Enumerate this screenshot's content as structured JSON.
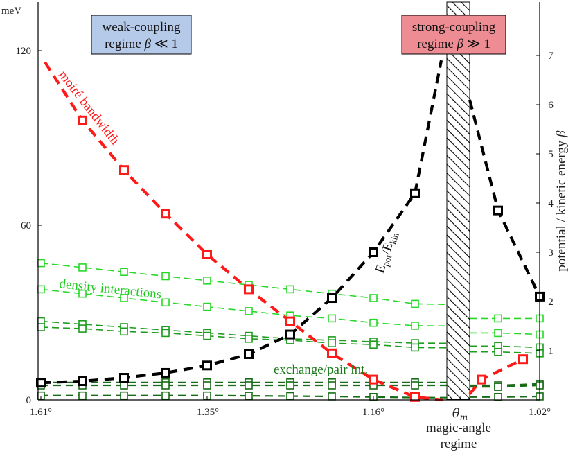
{
  "chart_data": {
    "type": "line",
    "x_axis": {
      "tick_labels": [
        "1.61°",
        "1.35°",
        "1.16°",
        "θ_m",
        "1.02°"
      ],
      "magic_label_line1": "magic-angle",
      "magic_label_line2": "regime"
    },
    "left_axis": {
      "unit_label": "meV",
      "tick_labels": [
        "0",
        "60",
        "120"
      ],
      "ylim": [
        0,
        137
      ]
    },
    "right_axis": {
      "label": "potential / kinetic energy β",
      "tick_labels": [
        "1",
        "2",
        "3",
        "4",
        "5",
        "6",
        "7"
      ],
      "ylim": [
        0,
        8.1
      ]
    },
    "weak_box": {
      "line1": "weak-coupling",
      "line2": "regime β ≪ 1",
      "color": "#b5c9e8"
    },
    "strong_box": {
      "line1": "strong-coupling",
      "line2": "regime β ≫ 1",
      "color": "#ee8c93"
    },
    "annotations": {
      "bandwidth": "moiré bandwidth",
      "density": "density interactions",
      "exchange": "exchange/pair int.",
      "ratio": "E_pot/E_kin"
    },
    "x_positions_label": "marker positions in x-index units (0 = 1.61°, 12 = 1.02°; θ_m ≈ 10.1)",
    "series": [
      {
        "role": "bandwidth",
        "color": "#ff1a1a",
        "axis": "left",
        "x": [
          0.1,
          1,
          2,
          3,
          4,
          5,
          6,
          7,
          8,
          9,
          10.6,
          11.6
        ],
        "values": [
          116,
          96,
          79,
          64,
          50,
          38,
          27,
          16,
          7,
          1,
          7,
          14
        ]
      },
      {
        "role": "ratio",
        "color": "#000000",
        "axis": "right",
        "x": [
          0,
          1,
          2,
          3,
          4,
          5,
          6,
          7,
          8,
          9,
          11,
          12
        ],
        "values": [
          0.35,
          0.38,
          0.45,
          0.55,
          0.7,
          0.93,
          1.33,
          2.07,
          3.0,
          4.2,
          3.85,
          2.1
        ]
      },
      {
        "role": "density",
        "color": "#26d926",
        "axis": "left",
        "x": [
          0,
          1,
          2,
          3,
          4,
          5,
          6,
          7,
          8,
          9,
          11,
          12
        ],
        "values": [
          47,
          45.5,
          44,
          42.5,
          41,
          39.5,
          38,
          36.5,
          35,
          33,
          28,
          28
        ]
      },
      {
        "role": "density",
        "color": "#26d926",
        "axis": "left",
        "x": [
          0,
          1,
          2,
          3,
          4,
          5,
          6,
          7,
          8,
          9,
          11,
          12
        ],
        "values": [
          38,
          36.5,
          35,
          33.5,
          32,
          30.5,
          29,
          28,
          26.5,
          25.5,
          23,
          22.5
        ]
      },
      {
        "role": "density",
        "color": "#1e9c1e",
        "axis": "left",
        "x": [
          0,
          1,
          2,
          3,
          4,
          5,
          6,
          7,
          8,
          9,
          11,
          12
        ],
        "values": [
          27,
          26,
          25,
          24,
          23,
          22,
          21,
          20.5,
          20,
          19.5,
          18.5,
          18
        ]
      },
      {
        "role": "density",
        "color": "#1e9c1e",
        "axis": "left",
        "x": [
          0,
          1,
          2,
          3,
          4,
          5,
          6,
          7,
          8,
          9,
          11,
          12
        ],
        "values": [
          25,
          24.5,
          23.5,
          23,
          22,
          21,
          20.5,
          19.5,
          19,
          18,
          16.5,
          16
        ]
      },
      {
        "role": "exchange",
        "color": "#166b16",
        "axis": "left",
        "x": [
          0,
          1,
          2,
          3,
          4,
          5,
          6,
          7,
          8,
          9,
          11,
          12
        ],
        "values": [
          6,
          6,
          6,
          6,
          6,
          6,
          6,
          6,
          6,
          6,
          5,
          5.5
        ]
      },
      {
        "role": "exchange",
        "color": "#166b16",
        "axis": "left",
        "x": [
          0,
          1,
          2,
          3,
          4,
          5,
          6,
          7,
          8,
          9,
          11,
          12
        ],
        "values": [
          5,
          5,
          5,
          5,
          5,
          5,
          5,
          5,
          5,
          5,
          4.5,
          5
        ]
      },
      {
        "role": "exchange",
        "color": "#166b16",
        "axis": "left",
        "x": [
          0,
          1,
          2,
          3,
          4,
          5,
          6,
          7,
          8,
          9,
          11,
          12
        ],
        "values": [
          1.5,
          1.5,
          1.5,
          1.5,
          1.5,
          1.4,
          1.3,
          1.2,
          1,
          0.8,
          1,
          1.2
        ]
      }
    ]
  }
}
